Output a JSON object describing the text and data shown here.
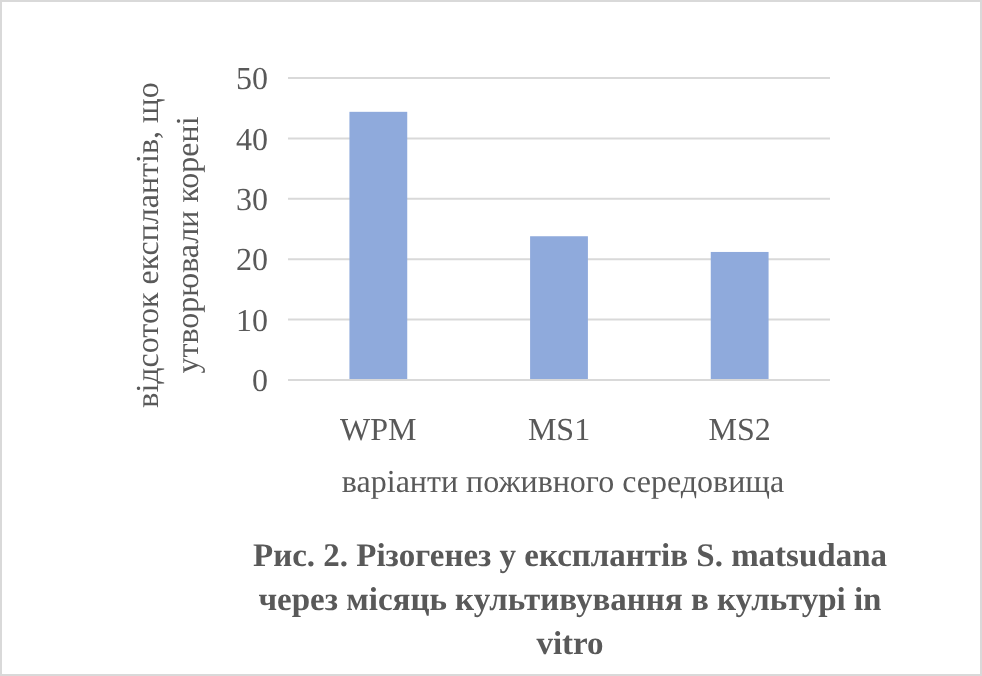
{
  "chart_data": {
    "type": "bar",
    "categories": [
      "WPM",
      "MS1",
      "MS2"
    ],
    "values": [
      44.4,
      23.8,
      21.2
    ],
    "color": "#8faadc",
    "ylim": [
      0,
      50
    ],
    "yticks": [
      0,
      10,
      20,
      30,
      40,
      50
    ],
    "grid": "y",
    "ylabel": "відсоток експлантів, що утворювали корені",
    "xlabel": "варіанти поживного середовища",
    "annotations": [
      "Рис. 2. Різогенез у експлантів S. matsudana через місяць культивування в культурі in vitro"
    ]
  }
}
